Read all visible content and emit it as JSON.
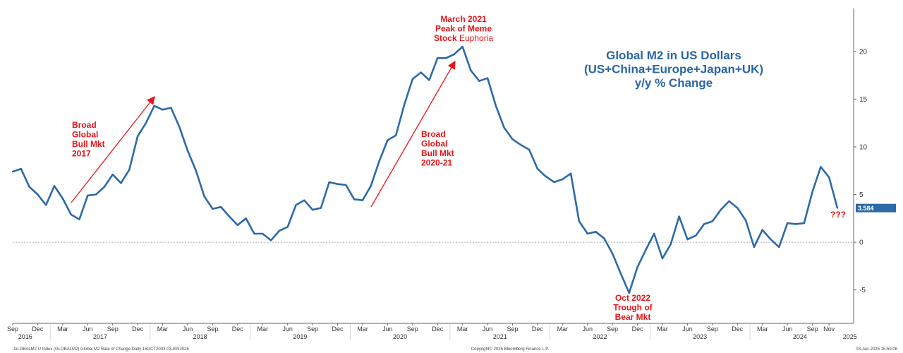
{
  "chart_data": {
    "type": "line",
    "title_lines": [
      "Global M2 in US Dollars",
      "(US+China+Europe+Japan+UK)",
      "y/y % Change"
    ],
    "ylim": [
      -8.5,
      24.5
    ],
    "yticks": [
      -5,
      0,
      5,
      10,
      15,
      20
    ],
    "month_ticks": [
      {
        "i": 0,
        "label": "Sep"
      },
      {
        "i": 3,
        "label": "Dec"
      },
      {
        "i": 6,
        "label": "Mar"
      },
      {
        "i": 9,
        "label": "Jun"
      },
      {
        "i": 12,
        "label": "Sep"
      },
      {
        "i": 15,
        "label": "Dec"
      },
      {
        "i": 18,
        "label": "Mar"
      },
      {
        "i": 21,
        "label": "Jun"
      },
      {
        "i": 24,
        "label": "Sep"
      },
      {
        "i": 27,
        "label": "Dec"
      },
      {
        "i": 30,
        "label": "Mar"
      },
      {
        "i": 33,
        "label": "Jun"
      },
      {
        "i": 36,
        "label": "Sep"
      },
      {
        "i": 39,
        "label": "Dec"
      },
      {
        "i": 42,
        "label": "Mar"
      },
      {
        "i": 45,
        "label": "Jun"
      },
      {
        "i": 48,
        "label": "Sep"
      },
      {
        "i": 51,
        "label": "Dec"
      },
      {
        "i": 54,
        "label": "Mar"
      },
      {
        "i": 57,
        "label": "Jun"
      },
      {
        "i": 60,
        "label": "Sep"
      },
      {
        "i": 63,
        "label": "Dec"
      },
      {
        "i": 66,
        "label": "Mar"
      },
      {
        "i": 69,
        "label": "Jun"
      },
      {
        "i": 72,
        "label": "Sep"
      },
      {
        "i": 75,
        "label": "Dec"
      },
      {
        "i": 78,
        "label": "Mar"
      },
      {
        "i": 81,
        "label": "Jun"
      },
      {
        "i": 84,
        "label": "Sep"
      },
      {
        "i": 87,
        "label": "Dec"
      },
      {
        "i": 90,
        "label": "Mar"
      },
      {
        "i": 93,
        "label": "Jun"
      },
      {
        "i": 96,
        "label": "Sep"
      },
      {
        "i": 98,
        "label": "Nov"
      }
    ],
    "year_labels": [
      {
        "i": 1.5,
        "label": "2016"
      },
      {
        "i": 10.5,
        "label": "2017"
      },
      {
        "i": 22.5,
        "label": "2018"
      },
      {
        "i": 34.5,
        "label": "2019"
      },
      {
        "i": 46.5,
        "label": "2020"
      },
      {
        "i": 58.5,
        "label": "2021"
      },
      {
        "i": 70.5,
        "label": "2022"
      },
      {
        "i": 82.5,
        "label": "2023"
      },
      {
        "i": 94.5,
        "label": "2024"
      },
      {
        "i": 100.5,
        "label": "2025"
      }
    ],
    "series": [
      {
        "color": "#2c6aa8",
        "start": "Aug 2016",
        "values": [
          7.4,
          7.7,
          5.8,
          5.0,
          3.9,
          5.9,
          4.6,
          2.9,
          2.4,
          4.9,
          5.0,
          5.8,
          7.1,
          6.2,
          7.6,
          11.1,
          12.5,
          14.3,
          13.9,
          14.1,
          12.1,
          9.6,
          7.5,
          4.8,
          3.5,
          3.7,
          2.7,
          1.8,
          2.5,
          0.9,
          0.9,
          0.2,
          1.2,
          1.6,
          3.9,
          4.4,
          3.4,
          3.6,
          6.3,
          6.1,
          6.0,
          4.5,
          4.4,
          5.9,
          8.5,
          10.7,
          11.2,
          14.4,
          17.1,
          17.8,
          17.0,
          19.3,
          19.3,
          19.7,
          20.5,
          18.0,
          16.9,
          17.2,
          14.3,
          12.0,
          10.8,
          10.2,
          9.7,
          7.7,
          6.9,
          6.3,
          6.6,
          7.2,
          2.2,
          0.9,
          1.1,
          0.4,
          -1.2,
          -3.3,
          -5.3,
          -2.6,
          -0.8,
          0.9,
          -1.7,
          -0.2,
          2.7,
          0.3,
          0.7,
          1.9,
          2.2,
          3.4,
          4.3,
          3.6,
          2.3,
          -0.5,
          1.3,
          0.3,
          -0.5,
          2.0,
          1.9,
          2.0,
          5.3,
          7.9,
          6.8,
          3.584
        ]
      }
    ],
    "last_value_label": "3.584",
    "annotations": [
      {
        "lines": [
          "Broad",
          "Global",
          "Bull Mkt",
          "2017"
        ]
      },
      {
        "lines": [
          "March 2021",
          "Peak of Meme",
          "Stock"
        ],
        "suffix": "Euphoria"
      },
      {
        "lines": [
          "Broad",
          "Global",
          "Bull Mkt",
          "2020-21"
        ]
      },
      {
        "lines": [
          "Oct 2022",
          "Trough of",
          "Bear Mkt"
        ]
      },
      {
        "lines": [
          "???"
        ]
      }
    ],
    "footer": {
      "left": ".GLOBALM2 U Index (GLOBALM2) Global M2 Rate of Change  Daily 15OCT2003-03JAN2025",
      "center": "Copyright© 2025 Bloomberg Finance L.P.",
      "right": "03-Jan-2025 15:59:08"
    }
  }
}
